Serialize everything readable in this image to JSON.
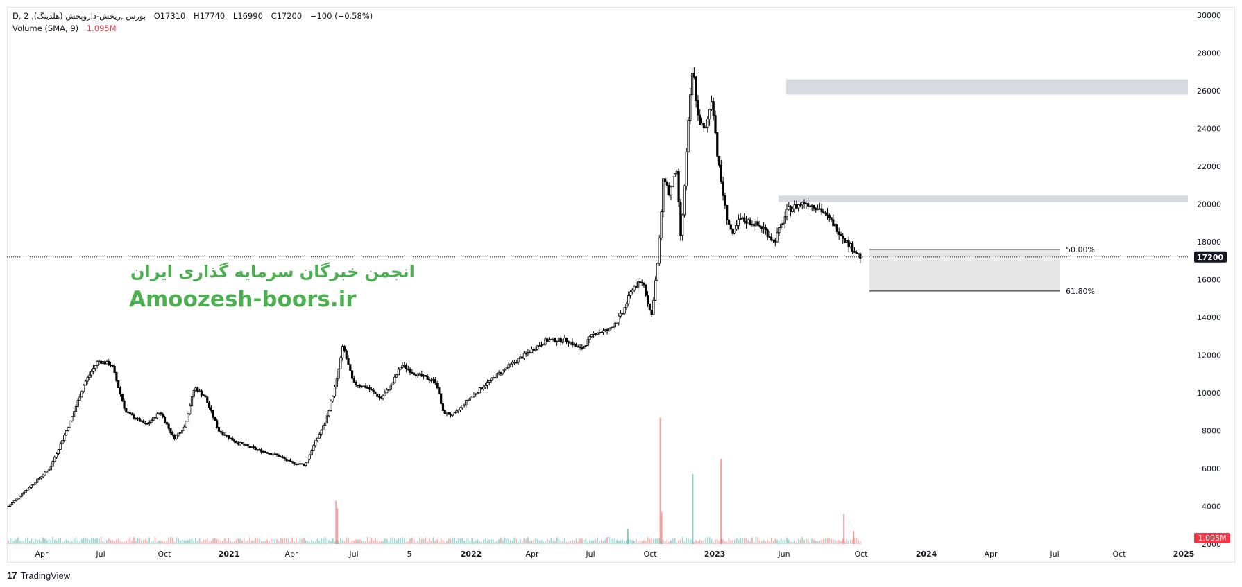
{
  "header": {
    "symbol": "D, بورس ,ريخش-داروپخش (هلدينگ), 2",
    "open": "O17310",
    "high": "H17740",
    "low": "L16990",
    "close": "C17200",
    "change": "−100 (−0.58%)",
    "volume_label": "Volume (SMA, 9)",
    "volume_value": "1.095M"
  },
  "watermark": {
    "line1": "انجمن خبرگان سرمایه گذاری ایران",
    "line2": "Amoozesh-boors.ir"
  },
  "branding": {
    "logo_mark": "17",
    "name": "TradingView"
  },
  "price_axis": {
    "ticks": [
      "30000",
      "28000",
      "26000",
      "24000",
      "22000",
      "20000",
      "18000",
      "16000",
      "14000",
      "12000",
      "10000",
      "8000",
      "6000",
      "4000",
      "2000"
    ],
    "last_price_label": "17200",
    "last_volume_label": "1.095M"
  },
  "time_axis": {
    "ticks": [
      "Apr",
      "Jul",
      "Oct",
      "2021",
      "Apr",
      "Jul",
      "5",
      "2022",
      "Apr",
      "Jul",
      "Oct",
      "2023",
      "Jun",
      "Oct",
      "2024",
      "Apr",
      "Jul",
      "Oct",
      "2025"
    ]
  },
  "fib_levels": [
    {
      "label": "50.00%",
      "price": 17600
    },
    {
      "label": "61.80%",
      "price": 15400
    }
  ],
  "zones": [
    {
      "from": 25800,
      "to": 26600,
      "kind": "resistance"
    },
    {
      "from": 20100,
      "to": 20450,
      "kind": "resistance"
    }
  ],
  "colors": {
    "up_volume": "#26a69a",
    "down_volume": "#ef5350",
    "last_price_bg": "#131722",
    "volume_badge_bg": "#f23645",
    "zone_fill": "#d1d4dc",
    "fib_fill": "#e6e6e6",
    "watermark": "#4caf50"
  },
  "chart_data": {
    "type": "candlestick",
    "title": "",
    "y_axis": {
      "min": 2000,
      "max": 30000,
      "scale": "linear"
    },
    "last_price": 17200,
    "price_path": [
      {
        "x": 0,
        "y": 4000
      },
      {
        "x": 30,
        "y": 5000
      },
      {
        "x": 60,
        "y": 6000
      },
      {
        "x": 90,
        "y": 8500
      },
      {
        "x": 110,
        "y": 10500
      },
      {
        "x": 130,
        "y": 11700
      },
      {
        "x": 150,
        "y": 11500
      },
      {
        "x": 170,
        "y": 9000
      },
      {
        "x": 200,
        "y": 8300
      },
      {
        "x": 220,
        "y": 9000
      },
      {
        "x": 240,
        "y": 7600
      },
      {
        "x": 255,
        "y": 8200
      },
      {
        "x": 270,
        "y": 10300
      },
      {
        "x": 285,
        "y": 9800
      },
      {
        "x": 305,
        "y": 8000
      },
      {
        "x": 330,
        "y": 7400
      },
      {
        "x": 360,
        "y": 7000
      },
      {
        "x": 390,
        "y": 6700
      },
      {
        "x": 410,
        "y": 6300
      },
      {
        "x": 430,
        "y": 6200
      },
      {
        "x": 445,
        "y": 7400
      },
      {
        "x": 460,
        "y": 8500
      },
      {
        "x": 475,
        "y": 10500
      },
      {
        "x": 485,
        "y": 12500
      },
      {
        "x": 500,
        "y": 10500
      },
      {
        "x": 520,
        "y": 10300
      },
      {
        "x": 540,
        "y": 9700
      },
      {
        "x": 555,
        "y": 10400
      },
      {
        "x": 570,
        "y": 11500
      },
      {
        "x": 590,
        "y": 11000
      },
      {
        "x": 620,
        "y": 10600
      },
      {
        "x": 630,
        "y": 9000
      },
      {
        "x": 645,
        "y": 8800
      },
      {
        "x": 665,
        "y": 9600
      },
      {
        "x": 690,
        "y": 10400
      },
      {
        "x": 710,
        "y": 11000
      },
      {
        "x": 740,
        "y": 11800
      },
      {
        "x": 760,
        "y": 12300
      },
      {
        "x": 780,
        "y": 12800
      },
      {
        "x": 810,
        "y": 12800
      },
      {
        "x": 830,
        "y": 12300
      },
      {
        "x": 850,
        "y": 13200
      },
      {
        "x": 870,
        "y": 13300
      },
      {
        "x": 890,
        "y": 14200
      },
      {
        "x": 905,
        "y": 15600
      },
      {
        "x": 920,
        "y": 15900
      },
      {
        "x": 932,
        "y": 14000
      },
      {
        "x": 942,
        "y": 17200
      },
      {
        "x": 950,
        "y": 21600
      },
      {
        "x": 958,
        "y": 20500
      },
      {
        "x": 968,
        "y": 22000
      },
      {
        "x": 975,
        "y": 18000
      },
      {
        "x": 985,
        "y": 24000
      },
      {
        "x": 992,
        "y": 27300
      },
      {
        "x": 1000,
        "y": 24500
      },
      {
        "x": 1010,
        "y": 23800
      },
      {
        "x": 1020,
        "y": 25700
      },
      {
        "x": 1028,
        "y": 22500
      },
      {
        "x": 1040,
        "y": 19500
      },
      {
        "x": 1050,
        "y": 18300
      },
      {
        "x": 1060,
        "y": 19200
      },
      {
        "x": 1080,
        "y": 19000
      },
      {
        "x": 1095,
        "y": 18700
      },
      {
        "x": 1110,
        "y": 18000
      },
      {
        "x": 1130,
        "y": 19700
      },
      {
        "x": 1155,
        "y": 20100
      },
      {
        "x": 1175,
        "y": 19800
      },
      {
        "x": 1195,
        "y": 19000
      },
      {
        "x": 1215,
        "y": 18000
      },
      {
        "x": 1235,
        "y": 17200
      }
    ],
    "volume_spikes": [
      {
        "x": 475,
        "value": 4300
      },
      {
        "x": 477,
        "value": 3900
      },
      {
        "x": 898,
        "value": 2800
      },
      {
        "x": 945,
        "value": 8700
      },
      {
        "x": 947,
        "value": 3700
      },
      {
        "x": 992,
        "value": 5700
      },
      {
        "x": 1033,
        "value": 6500
      },
      {
        "x": 1211,
        "value": 3600
      },
      {
        "x": 1225,
        "value": 2700
      }
    ]
  }
}
